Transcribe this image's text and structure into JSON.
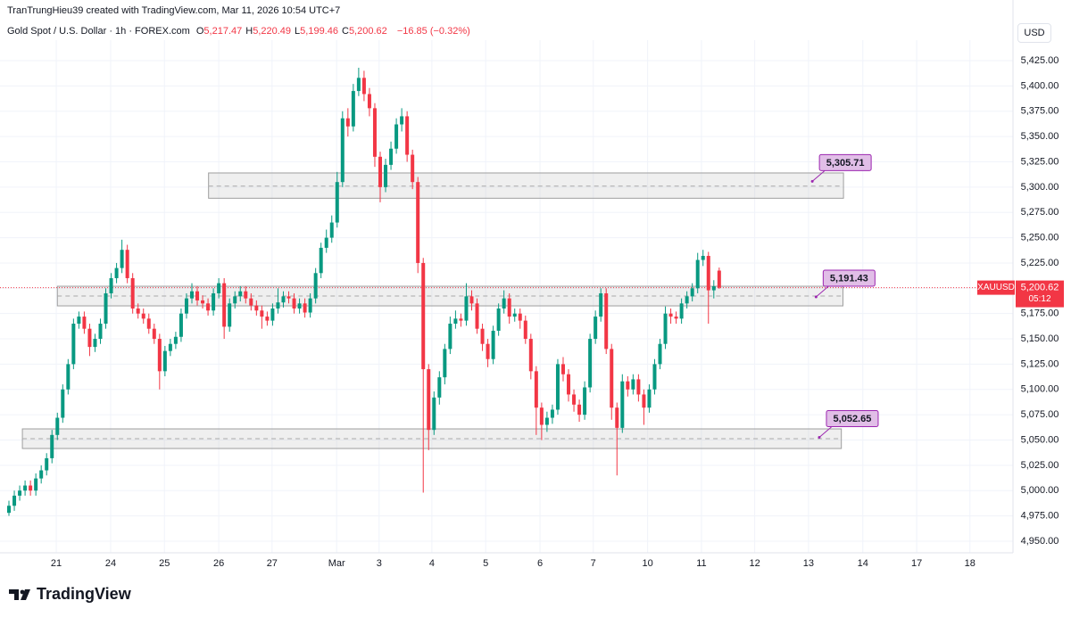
{
  "header": {
    "credit": "TranTrungHieu39 created with TradingView.com, Mar 11, 2026 10:54 UTC+7",
    "symbol": "Gold Spot / U.S. Dollar · 1h · FOREX.com",
    "ohlc": [
      {
        "key": "O",
        "value": "5,217.47"
      },
      {
        "key": "H",
        "value": "5,220.49"
      },
      {
        "key": "L",
        "value": "5,199.46"
      },
      {
        "key": "C",
        "value": "5,200.62"
      }
    ],
    "change": "−16.85 (−0.32%)",
    "currency": "USD"
  },
  "brand": "TradingView",
  "chart_data": {
    "type": "candlestick",
    "up_color": "#089981",
    "down_color": "#f23645",
    "grid": true,
    "xlim": [
      -1.66,
      186.6
    ],
    "ylim": [
      4938.5,
      5445.3
    ],
    "xticks": [
      {
        "value": 8.8,
        "label": "21"
      },
      {
        "value": 18.9,
        "label": "24"
      },
      {
        "value": 28.9,
        "label": "25"
      },
      {
        "value": 39,
        "label": "26"
      },
      {
        "value": 48.9,
        "label": "27"
      },
      {
        "value": 60.9,
        "label": "Mar"
      },
      {
        "value": 68.8,
        "label": "3"
      },
      {
        "value": 78.6,
        "label": "4"
      },
      {
        "value": 88.6,
        "label": "5"
      },
      {
        "value": 98.7,
        "label": "6"
      },
      {
        "value": 108.6,
        "label": "7"
      },
      {
        "value": 118.7,
        "label": "10"
      },
      {
        "value": 128.7,
        "label": "11"
      },
      {
        "value": 138.6,
        "label": "12"
      },
      {
        "value": 148.6,
        "label": "13"
      },
      {
        "value": 158.7,
        "label": "14"
      },
      {
        "value": 168.7,
        "label": "17"
      },
      {
        "value": 178.6,
        "label": "18"
      }
    ],
    "yticks": [
      {
        "value": 4950,
        "label": "4,950.00"
      },
      {
        "value": 4975,
        "label": "4,975.00"
      },
      {
        "value": 5000,
        "label": "5,000.00"
      },
      {
        "value": 5025,
        "label": "5,025.00"
      },
      {
        "value": 5050,
        "label": "5,050.00"
      },
      {
        "value": 5075,
        "label": "5,075.00"
      },
      {
        "value": 5100,
        "label": "5,100.00"
      },
      {
        "value": 5125,
        "label": "5,125.00"
      },
      {
        "value": 5150,
        "label": "5,150.00"
      },
      {
        "value": 5175,
        "label": "5,175.00"
      },
      {
        "value": 5200,
        "label": "5,200.00"
      },
      {
        "value": 5225,
        "label": "5,225.00"
      },
      {
        "value": 5250,
        "label": "5,250.00"
      },
      {
        "value": 5275,
        "label": "5,275.00"
      },
      {
        "value": 5300,
        "label": "5,300.00"
      },
      {
        "value": 5325,
        "label": "5,325.00"
      },
      {
        "value": 5350,
        "label": "5,350.00"
      },
      {
        "value": 5375,
        "label": "5,375.00"
      },
      {
        "value": 5400,
        "label": "5,400.00"
      },
      {
        "value": 5425,
        "label": "5,425.00"
      }
    ],
    "open": [
      4978,
      4985,
      4995,
      5000,
      5005,
      5000,
      5012,
      5020,
      5032,
      5055,
      5072,
      5100,
      5125,
      5165,
      5172,
      5160,
      5142,
      5150,
      5165,
      5195,
      5210,
      5220,
      5238,
      5210,
      5180,
      5175,
      5170,
      5160,
      5150,
      5118,
      5138,
      5145,
      5152,
      5175,
      5190,
      5197,
      5188,
      5185,
      5178,
      5195,
      5205,
      5162,
      5185,
      5192,
      5197,
      5190,
      5183,
      5178,
      5172,
      5168,
      5180,
      5186,
      5192,
      5190,
      5180,
      5185,
      5176,
      5190,
      5215,
      5240,
      5250,
      5265,
      5305,
      5368,
      5360,
      5395,
      5408,
      5392,
      5378,
      5330,
      5300,
      5322,
      5338,
      5362,
      5370,
      5332,
      5305,
      5225,
      5120,
      5060,
      5092,
      5112,
      5140,
      5165,
      5170,
      5168,
      5192,
      5185,
      5160,
      5145,
      5130,
      5158,
      5180,
      5190,
      5172,
      5175,
      5168,
      5150,
      5118,
      5082,
      5065,
      5072,
      5080,
      5125,
      5115,
      5095,
      5085,
      5075,
      5102,
      5150,
      5172,
      5195,
      5140,
      5082,
      5062,
      5108,
      5100,
      5110,
      5095,
      5082,
      5100,
      5125,
      5145,
      5175,
      5172,
      5170,
      5185,
      5192,
      5200,
      5228,
      5232,
      5198,
      5217.47
    ],
    "high": [
      4990,
      5000,
      5005,
      5010,
      5010,
      5017,
      5025,
      5037,
      5060,
      5077,
      5105,
      5130,
      5170,
      5177,
      5177,
      5165,
      5155,
      5170,
      5200,
      5215,
      5225,
      5248,
      5243,
      5215,
      5185,
      5180,
      5175,
      5165,
      5155,
      5143,
      5150,
      5157,
      5180,
      5195,
      5205,
      5202,
      5193,
      5190,
      5200,
      5210,
      5210,
      5190,
      5197,
      5202,
      5202,
      5195,
      5188,
      5183,
      5177,
      5185,
      5200,
      5197,
      5197,
      5195,
      5190,
      5190,
      5195,
      5220,
      5245,
      5258,
      5272,
      5315,
      5375,
      5378,
      5402,
      5418,
      5415,
      5398,
      5383,
      5335,
      5328,
      5345,
      5368,
      5378,
      5375,
      5337,
      5310,
      5230,
      5125,
      5098,
      5118,
      5145,
      5172,
      5178,
      5175,
      5205,
      5198,
      5190,
      5165,
      5150,
      5163,
      5185,
      5198,
      5195,
      5180,
      5180,
      5173,
      5155,
      5123,
      5087,
      5078,
      5085,
      5130,
      5132,
      5120,
      5100,
      5090,
      5108,
      5155,
      5178,
      5200,
      5200,
      5145,
      5087,
      5115,
      5113,
      5115,
      5115,
      5100,
      5105,
      5130,
      5150,
      5182,
      5180,
      5177,
      5190,
      5197,
      5205,
      5235,
      5238,
      5236,
      5208,
      5220.49
    ],
    "low": [
      4975,
      4980,
      4990,
      4995,
      4995,
      4995,
      5007,
      5015,
      5027,
      5050,
      5067,
      5095,
      5120,
      5160,
      5155,
      5133,
      5137,
      5145,
      5160,
      5190,
      5205,
      5215,
      5205,
      5175,
      5170,
      5165,
      5155,
      5145,
      5100,
      5113,
      5133,
      5140,
      5147,
      5170,
      5185,
      5183,
      5180,
      5173,
      5173,
      5190,
      5150,
      5157,
      5180,
      5187,
      5185,
      5178,
      5173,
      5160,
      5163,
      5163,
      5175,
      5181,
      5185,
      5175,
      5175,
      5171,
      5171,
      5185,
      5210,
      5235,
      5245,
      5260,
      5300,
      5350,
      5355,
      5390,
      5385,
      5370,
      5320,
      5285,
      5295,
      5317,
      5333,
      5355,
      5325,
      5298,
      5215,
      4998,
      5040,
      5055,
      5085,
      5105,
      5135,
      5160,
      5162,
      5163,
      5178,
      5155,
      5138,
      5122,
      5125,
      5153,
      5175,
      5165,
      5167,
      5160,
      5145,
      5110,
      5055,
      5050,
      5058,
      5066,
      5075,
      5108,
      5088,
      5078,
      5068,
      5070,
      5097,
      5145,
      5167,
      5135,
      5070,
      5015,
      5057,
      5093,
      5095,
      5088,
      5065,
      5077,
      5095,
      5120,
      5140,
      5165,
      5165,
      5165,
      5180,
      5187,
      5195,
      5222,
      5165,
      5190,
      5199.46
    ],
    "close": [
      4985,
      4995,
      5000,
      5005,
      5000,
      5012,
      5020,
      5032,
      5055,
      5072,
      5100,
      5125,
      5165,
      5172,
      5160,
      5142,
      5150,
      5165,
      5195,
      5210,
      5220,
      5238,
      5210,
      5180,
      5175,
      5170,
      5160,
      5150,
      5118,
      5138,
      5145,
      5152,
      5175,
      5190,
      5197,
      5188,
      5185,
      5178,
      5195,
      5205,
      5162,
      5185,
      5192,
      5197,
      5190,
      5183,
      5178,
      5172,
      5168,
      5180,
      5186,
      5192,
      5190,
      5180,
      5185,
      5176,
      5190,
      5215,
      5240,
      5250,
      5265,
      5305,
      5368,
      5360,
      5395,
      5408,
      5392,
      5378,
      5330,
      5300,
      5322,
      5338,
      5362,
      5370,
      5332,
      5305,
      5225,
      5120,
      5060,
      5092,
      5112,
      5140,
      5165,
      5170,
      5168,
      5192,
      5185,
      5160,
      5145,
      5130,
      5158,
      5180,
      5190,
      5172,
      5175,
      5168,
      5150,
      5118,
      5082,
      5065,
      5072,
      5080,
      5125,
      5115,
      5095,
      5085,
      5075,
      5102,
      5150,
      5172,
      5195,
      5140,
      5082,
      5062,
      5108,
      5100,
      5110,
      5095,
      5082,
      5100,
      5125,
      5145,
      5175,
      5172,
      5170,
      5185,
      5192,
      5200,
      5228,
      5232,
      5198,
      5202,
      5200.62
    ],
    "zones": [
      {
        "top": 5314,
        "bottom": 5289,
        "mid": 5301,
        "start": 37.1,
        "end": 155.1
      },
      {
        "top": 5202,
        "bottom": 5182.6,
        "mid": 5192.3,
        "start": 9,
        "end": 155
      },
      {
        "top": 5061,
        "bottom": 5041.6,
        "mid": 5051.3,
        "start": 2.5,
        "end": 154.7
      }
    ],
    "annotations": [
      {
        "x": 149.3,
        "value": 5305.71,
        "label": "5,305.71"
      },
      {
        "x": 150,
        "value": 5191.43,
        "label": "5,191.43"
      },
      {
        "x": 150.6,
        "value": 5052.65,
        "label": "5,052.65"
      }
    ],
    "last_price": {
      "symbol": "XAUUSD",
      "value": 5200.62,
      "label": "5,200.62",
      "countdown": "05:12"
    }
  }
}
